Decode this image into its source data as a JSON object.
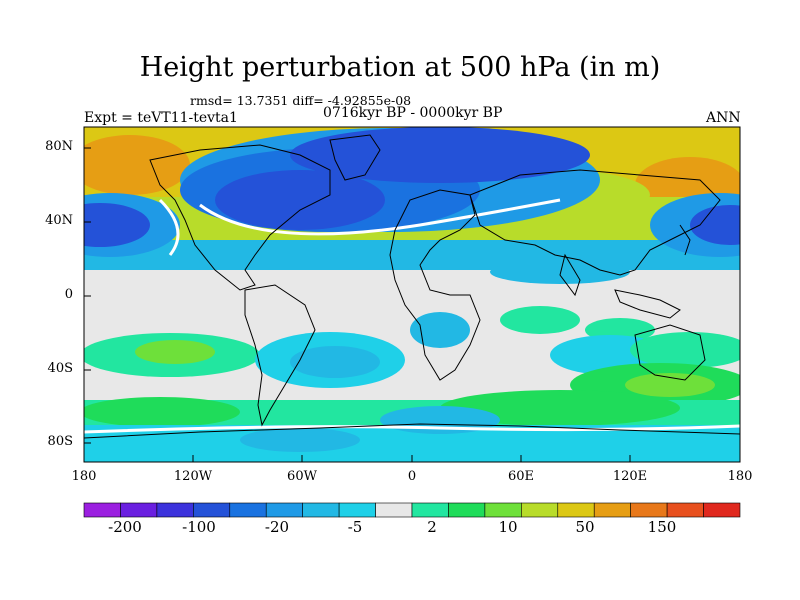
{
  "title": "Height perturbation at 500 hPa (in m)",
  "stats": "rmsd= 13.7351 diff= -4.92855e-08",
  "experiment": "Expt = teVT11-tevta1",
  "period": "0716kyr BP - 0000kyr BP",
  "season": "ANN",
  "map": {
    "projection": "cylindrical-equidistant",
    "lat_range": [
      -90,
      90
    ],
    "lon_range": [
      -180,
      180
    ],
    "lat_ticks": [
      "80N",
      "40N",
      "0",
      "40S",
      "80S"
    ],
    "lon_ticks": [
      "180",
      "120W",
      "60W",
      "0",
      "60E",
      "120E",
      "180"
    ],
    "background_color": "#e8e8e8",
    "coastline_color": "#000000"
  },
  "colorbar": {
    "levels": [
      "-200",
      "-100",
      "-20",
      "-5",
      "2",
      "10",
      "50",
      "150"
    ],
    "colors": [
      "#9b1fe0",
      "#6a1fe0",
      "#3c32dc",
      "#2452d8",
      "#1a72e0",
      "#1f9ae6",
      "#22b8e4",
      "#1fd0e8",
      "#e8e8e8",
      "#22e6a0",
      "#1fdc5a",
      "#6ee03a",
      "#b8dc2a",
      "#dcc814",
      "#e69e14",
      "#e8781a",
      "#e8501e",
      "#e0281e"
    ]
  }
}
